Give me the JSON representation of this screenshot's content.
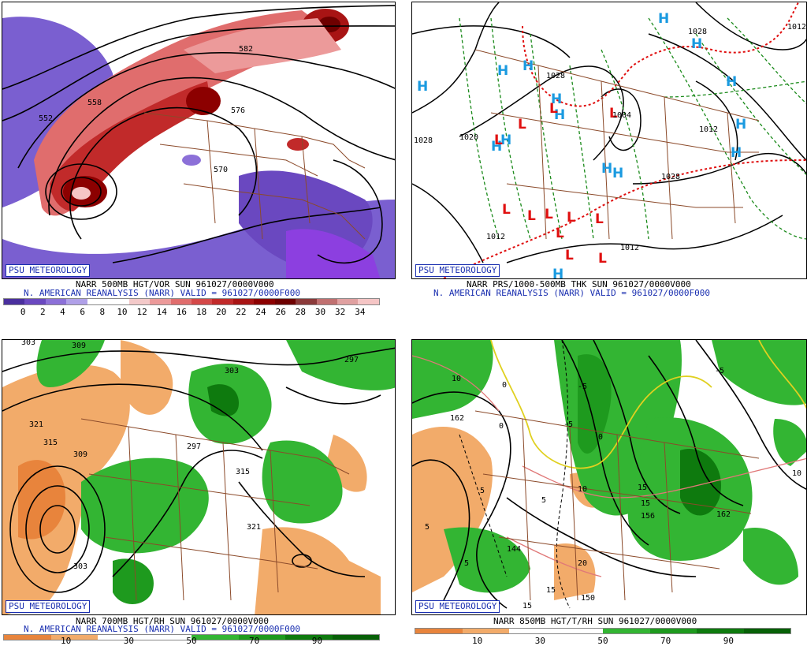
{
  "brand": "PSU METEOROLOGY",
  "panels": {
    "p1": {
      "line1": "NARR 500MB HGT/VOR SUN 961027/0000V000",
      "line2": "N. AMERICAN REANALYSIS (NARR) VALID = 961027/0000F000",
      "scale": [
        "0",
        "2",
        "4",
        "6",
        "8",
        "10",
        "12",
        "14",
        "16",
        "18",
        "20",
        "22",
        "24",
        "26",
        "28",
        "30",
        "32",
        "34"
      ],
      "contour_labels": [
        "552",
        "558",
        "570",
        "576",
        "582"
      ]
    },
    "p2": {
      "line1": "NARR PRS/1000-500MB THK SUN 961027/0000V000",
      "line2": "N. AMERICAN REANALYSIS (NARR) VALID = 961027/0000F000",
      "contour_labels": [
        "1028",
        "1028",
        "1020",
        "1012",
        "1012",
        "1012",
        "1028",
        "1028",
        "1012",
        "1004"
      ],
      "highs": "H",
      "lows": "L"
    },
    "p3": {
      "line1": "NARR 700MB HGT/RH SUN 961027/0000V000",
      "line2": "N. AMERICAN REANALYSIS (NARR) VALID = 961027/0000F000",
      "scale": [
        "10",
        "30",
        "50",
        "70",
        "90"
      ],
      "contour_labels": [
        "303",
        "309",
        "303",
        "297",
        "321",
        "315",
        "309",
        "315",
        "297",
        "321",
        "303"
      ]
    },
    "p4": {
      "line1": "NARR 850MB HGT/T/RH SUN 961027/0000V000",
      "scale": [
        "10",
        "30",
        "50",
        "70",
        "90"
      ],
      "contour_labels": [
        "162",
        "144",
        "150",
        "156",
        "162",
        "-5",
        "-5",
        "-5",
        "0",
        "0",
        "0",
        "5",
        "5",
        "5",
        "5",
        "10",
        "10",
        "10",
        "15",
        "15",
        "15",
        "15",
        "20"
      ]
    }
  },
  "colors": {
    "vor": [
      "#4a2f9e",
      "#6a48c0",
      "#8c70d8",
      "#b0a0e8",
      "#ffffff",
      "#ffffff",
      "#f3c9c9",
      "#ec9a9a",
      "#e06d6d",
      "#d44848",
      "#c12a2a",
      "#a81414",
      "#8c0000",
      "#6e0000",
      "#8b3a3a",
      "#c07070",
      "#e0a0a0",
      "#f5c5c5"
    ],
    "rh": [
      "#e8843c",
      "#f2ab6a",
      "#ffffff",
      "#ffffff",
      "#33b533",
      "#1e9a1e",
      "#0e7a0e",
      "#076007"
    ]
  }
}
